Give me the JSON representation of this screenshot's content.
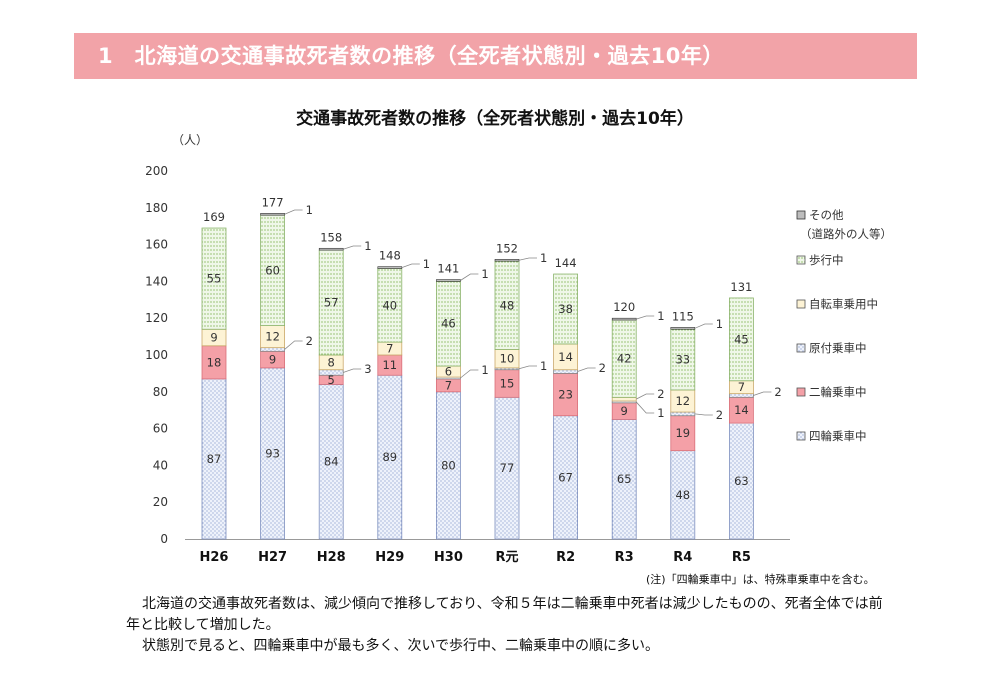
{
  "header": {
    "title": "1　北海道の交通事故死者数の推移（全死者状態別・過去10年）"
  },
  "chart_data": {
    "type": "bar",
    "stacked": true,
    "title": "交通事故死者数の推移（全死者状態別・過去10年）",
    "ylabel": "（人）",
    "ylim": [
      0,
      200
    ],
    "yticks": [
      0,
      20,
      40,
      60,
      80,
      100,
      120,
      140,
      160,
      180,
      200
    ],
    "categories": [
      "H26",
      "H27",
      "H28",
      "H29",
      "H30",
      "R元",
      "R2",
      "R3",
      "R4",
      "R5"
    ],
    "totals": [
      169,
      177,
      158,
      148,
      141,
      152,
      144,
      120,
      115,
      131
    ],
    "series": [
      {
        "name": "四輪乗車中",
        "values": [
          87,
          93,
          84,
          89,
          80,
          77,
          67,
          65,
          48,
          63
        ],
        "color": "#e8eef9"
      },
      {
        "name": "二輪乗車中",
        "values": [
          18,
          9,
          5,
          11,
          7,
          15,
          23,
          9,
          19,
          14
        ],
        "color": "#f2a0a6"
      },
      {
        "name": "原付乗車中",
        "values": [
          0,
          2,
          3,
          0,
          1,
          1,
          2,
          1,
          2,
          2
        ],
        "color": "#ecece6"
      },
      {
        "name": "自転車乗用中",
        "values": [
          9,
          12,
          8,
          7,
          6,
          10,
          14,
          2,
          12,
          7
        ],
        "color": "#fdf4d6"
      },
      {
        "name": "歩行中",
        "values": [
          55,
          60,
          57,
          40,
          46,
          48,
          38,
          42,
          33,
          45
        ],
        "color": "#eaf4e2"
      },
      {
        "name": "その他（道路外の人等）",
        "values": [
          0,
          1,
          1,
          1,
          1,
          1,
          0,
          1,
          1,
          0
        ],
        "color": "#c8c8c8"
      }
    ],
    "legend": {
      "position": "right",
      "entries": [
        "その他",
        "（道路外の人等）",
        "歩行中",
        "自転車乗用中",
        "原付乗車中",
        "二輪乗車中",
        "四輪乗車中"
      ]
    },
    "annotations": [
      {
        "category": "H27",
        "text": "1"
      },
      {
        "category": "H27",
        "text": "2"
      },
      {
        "category": "H28",
        "text": "1"
      },
      {
        "category": "H28",
        "text": "3"
      },
      {
        "category": "H29",
        "text": "1"
      },
      {
        "category": "H30",
        "text": "1"
      },
      {
        "category": "H30",
        "text": "1"
      },
      {
        "category": "R元",
        "text": "1"
      },
      {
        "category": "R元",
        "text": "1"
      },
      {
        "category": "R2",
        "text": "2"
      },
      {
        "category": "R3",
        "text": "1"
      },
      {
        "category": "R3",
        "text": "2"
      },
      {
        "category": "R3",
        "text": "1"
      },
      {
        "category": "R4",
        "text": "1"
      },
      {
        "category": "R4",
        "text": "2"
      },
      {
        "category": "R5",
        "text": "2"
      }
    ]
  },
  "footnote": "(注)「四輪乗車中」は、特殊車乗車中を含む。",
  "body": {
    "p1": "北海道の交通事故死者数は、減少傾向で推移しており、令和５年は二輪乗車中死者は減少したものの、死者全体では前年と比較して増加した。",
    "p2": "状態別で見ると、四輪乗車中が最も多く、次いで歩行中、二輪乗車中の順に多い。"
  }
}
